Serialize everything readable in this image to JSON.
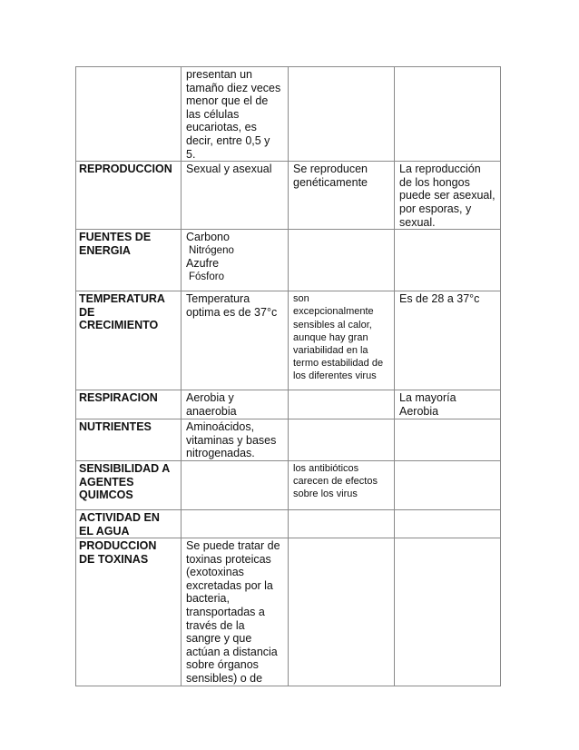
{
  "rows": [
    {
      "header": [],
      "cells": [
        [
          "presentan un",
          "tamaño diez veces",
          "menor que el de",
          "las células",
          "eucariotas, es",
          "decir, entre 0,5 y",
          "5."
        ],
        [],
        []
      ]
    },
    {
      "header": [
        "REPRODUCCION"
      ],
      "cells": [
        [
          "Sexual y asexual"
        ],
        [
          "Se reproducen",
          "genéticamente"
        ],
        [
          "La reproducción",
          "de los hongos",
          "puede ser asexual,",
          "por esporas, y",
          "sexual."
        ]
      ]
    },
    {
      "header": [
        "FUENTES DE",
        "ENERGIA"
      ],
      "cells": [
        [
          "Carbono",
          " Nitrógeno",
          "Azufre",
          " Fósforo"
        ],
        [],
        []
      ]
    },
    {
      "header": [
        "TEMPERATURA",
        "DE",
        "CRECIMIENTO"
      ],
      "cells": [
        [
          "Temperatura",
          "optima es de 37°c"
        ],
        [
          "son",
          "excepcionalmente",
          "sensibles al calor,",
          "aunque hay gran",
          "variabilidad en la",
          "termo estabilidad de",
          "los diferentes virus"
        ],
        [
          "Es de 28 a 37°c"
        ]
      ]
    },
    {
      "header": [
        "RESPIRACION"
      ],
      "cells": [
        [
          "Aerobia y",
          "anaerobia"
        ],
        [],
        [
          "La mayoría",
          "Aerobia"
        ]
      ]
    },
    {
      "header": [
        "NUTRIENTES"
      ],
      "cells": [
        [
          "Aminoácidos,",
          "vitaminas y bases",
          "nitrogenadas."
        ],
        [],
        []
      ]
    },
    {
      "header": [
        "SENSIBILIDAD A",
        "AGENTES",
        "QUIMCOS"
      ],
      "cells": [
        [],
        [
          "los antibióticos",
          "carecen de efectos",
          "sobre los virus"
        ],
        []
      ]
    },
    {
      "header": [
        "ACTIVIDAD EN",
        "EL AGUA"
      ],
      "cells": [
        [],
        [],
        []
      ]
    },
    {
      "header": [
        "PRODUCCION",
        "DE TOXINAS"
      ],
      "cells": [
        [
          "Se puede tratar de",
          "toxinas proteicas",
          "(exotoxinas",
          "excretadas por la",
          "bacteria,",
          "transportadas a",
          "través de la",
          "sangre y que",
          "actúan a distancia",
          "sobre órganos",
          "sensibles) o de"
        ],
        [],
        []
      ]
    }
  ]
}
